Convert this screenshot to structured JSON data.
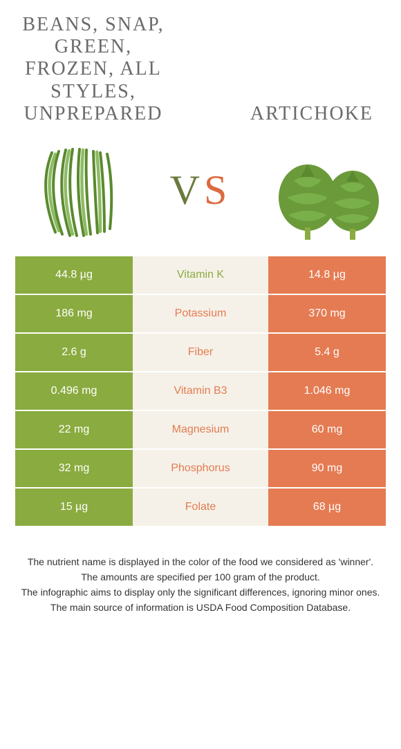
{
  "colors": {
    "green": "#8aab3f",
    "orange": "#e57b52",
    "mid_bg": "#f5f1e8",
    "title_gray": "#6a6a6a",
    "footer_text": "#333333"
  },
  "title_left": "Beans, snap, green, frozen, all styles, unprepared",
  "title_right": "Artichoke",
  "vs": {
    "v": "V",
    "s": "S"
  },
  "rows": [
    {
      "left": "44.8 µg",
      "mid": "Vitamin K",
      "right": "14.8 µg",
      "winner": "left"
    },
    {
      "left": "186 mg",
      "mid": "Potassium",
      "right": "370 mg",
      "winner": "right"
    },
    {
      "left": "2.6 g",
      "mid": "Fiber",
      "right": "5.4 g",
      "winner": "right"
    },
    {
      "left": "0.496 mg",
      "mid": "Vitamin B3",
      "right": "1.046 mg",
      "winner": "right"
    },
    {
      "left": "22 mg",
      "mid": "Magnesium",
      "right": "60 mg",
      "winner": "right"
    },
    {
      "left": "32 mg",
      "mid": "Phosphorus",
      "right": "90 mg",
      "winner": "right"
    },
    {
      "left": "15 µg",
      "mid": "Folate",
      "right": "68 µg",
      "winner": "right"
    }
  ],
  "footer": [
    "The nutrient name is displayed in the color of the food we considered as 'winner'.",
    "The amounts are specified per 100 gram of the product.",
    "The infographic aims to display only the significant differences, ignoring minor ones.",
    "The main source of information is USDA Food Composition Database."
  ]
}
